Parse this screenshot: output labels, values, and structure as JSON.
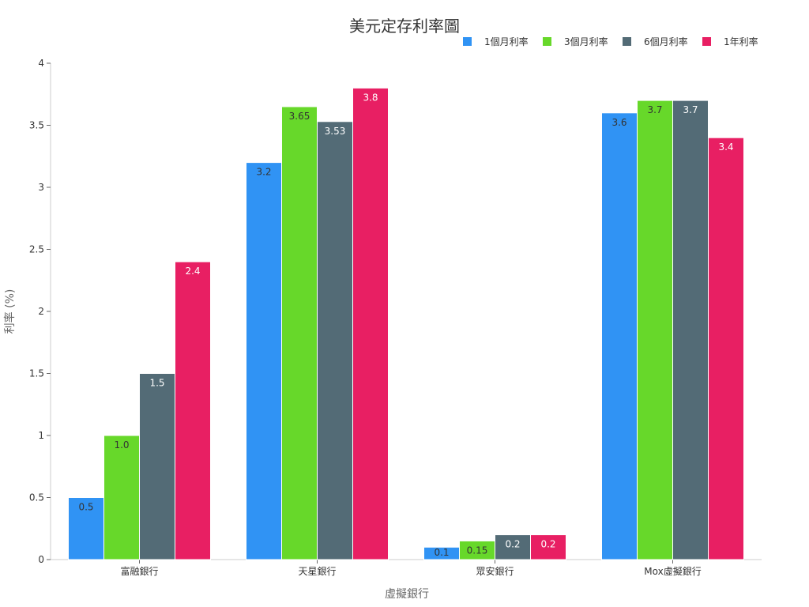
{
  "chart_data": {
    "type": "bar",
    "title": "美元定存利率圖",
    "xlabel": "虛擬銀行",
    "ylabel": "利率 (%)",
    "ylim": [
      0,
      4
    ],
    "yticks": [
      "0",
      "0.5",
      "1",
      "1.5",
      "2",
      "2.5",
      "3",
      "3.5",
      "4"
    ],
    "categories": [
      "富融銀行",
      "天星銀行",
      "眾安銀行",
      "Mox虛擬銀行"
    ],
    "legend_position": "top-right",
    "grid": false,
    "series": [
      {
        "name": "1個月利率",
        "color": "#3093f4",
        "label_color": "#333333",
        "values": [
          0.5,
          3.2,
          0.1,
          3.6
        ],
        "labels": [
          "0.5",
          "3.2",
          "0.1",
          "3.6"
        ]
      },
      {
        "name": "3個月利率",
        "color": "#67d82a",
        "label_color": "#333333",
        "values": [
          1.0,
          3.65,
          0.15,
          3.7
        ],
        "labels": [
          "1.0",
          "3.65",
          "0.15",
          "3.7"
        ]
      },
      {
        "name": "6個月利率",
        "color": "#536b76",
        "label_color": "#ffffff",
        "values": [
          1.5,
          3.53,
          0.2,
          3.7
        ],
        "labels": [
          "1.5",
          "3.53",
          "0.2",
          "3.7"
        ]
      },
      {
        "name": "1年利率",
        "color": "#e81f63",
        "label_color": "#ffffff",
        "values": [
          2.4,
          3.8,
          0.2,
          3.4
        ],
        "labels": [
          "2.4",
          "3.8",
          "0.2",
          "3.4"
        ]
      }
    ]
  }
}
